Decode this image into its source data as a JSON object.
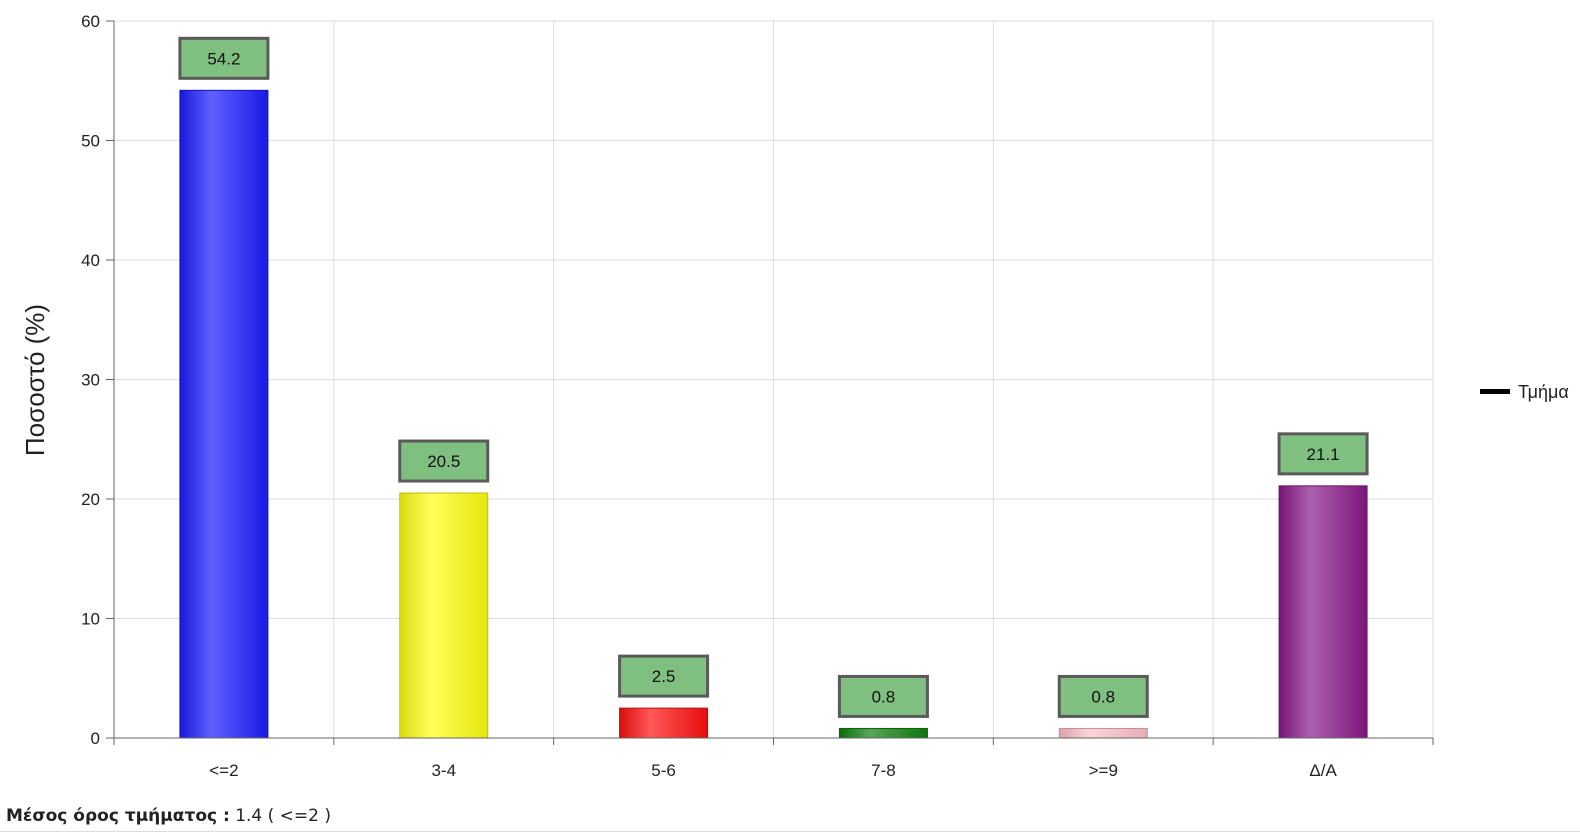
{
  "chart_data": {
    "type": "bar",
    "categories": [
      "<=2",
      "3-4",
      "5-6",
      "7-8",
      ">=9",
      "Δ/Α"
    ],
    "series": [
      {
        "name": "Τμήμα",
        "values": [
          54.2,
          20.5,
          2.5,
          0.8,
          0.8,
          21.1
        ],
        "data_labels": [
          "54.2",
          "20.5",
          "2.5",
          "0.8",
          "0.8",
          "21.1"
        ]
      }
    ],
    "bar_colors": [
      "#1c1cff",
      "#ffff10",
      "#ff1010",
      "#108010",
      "#ffc0cb",
      "#8a1a8a"
    ],
    "legend_color": "#000000",
    "data_label_fill": "#7fbf7f",
    "data_label_border": "#5a5a5a",
    "title": "",
    "xlabel": "",
    "ylabel": "Ποσοστό (%)",
    "ylim": [
      0,
      60
    ],
    "yticks": [
      0,
      10,
      20,
      30,
      40,
      50,
      60
    ],
    "grid": true,
    "legend_position": "right"
  },
  "footer": {
    "label": "Μέσος όρος τμήματος :",
    "value": "1.4 ( <=2 )"
  }
}
